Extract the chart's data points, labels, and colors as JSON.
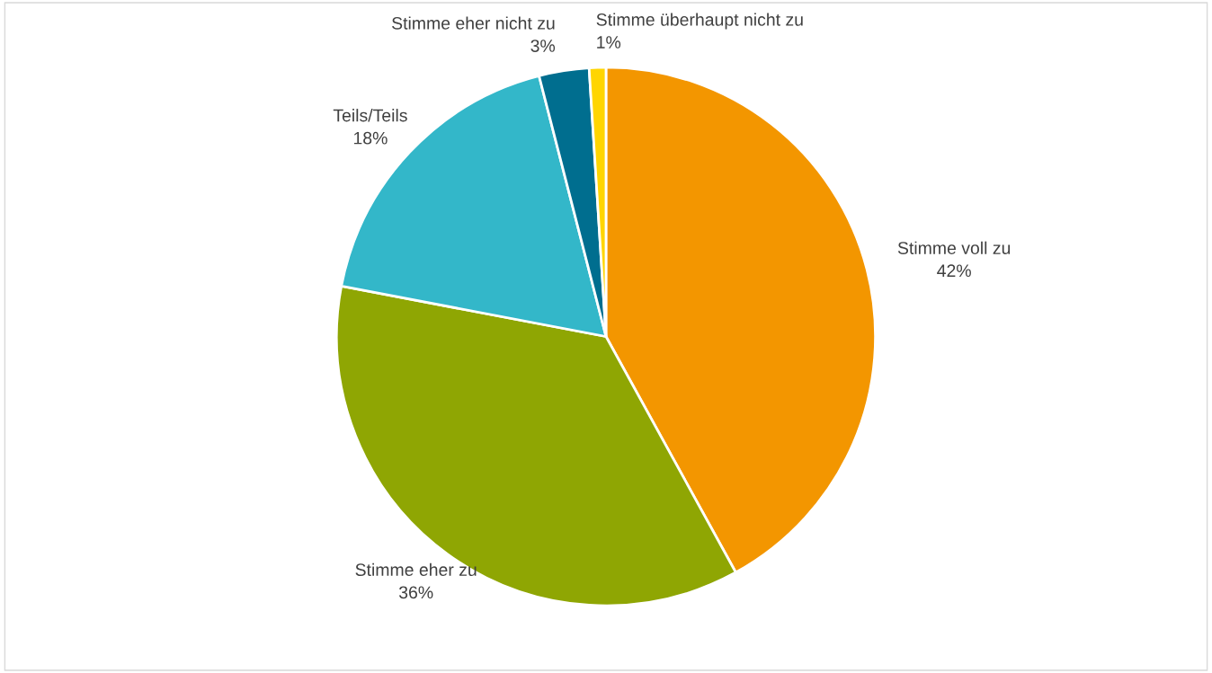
{
  "chart_data": {
    "type": "pie",
    "categories": [
      "Stimme voll zu",
      "Stimme eher zu",
      "Teils/Teils",
      "Stimme eher nicht zu",
      "Stimme überhaupt nicht zu"
    ],
    "values": [
      42,
      36,
      18,
      3,
      1
    ],
    "colors": [
      "#f39600",
      "#8fa603",
      "#33b7c9",
      "#006e8f",
      "#ffd500"
    ],
    "value_labels": [
      "42%",
      "36%",
      "18%",
      "3%",
      "1%"
    ]
  }
}
